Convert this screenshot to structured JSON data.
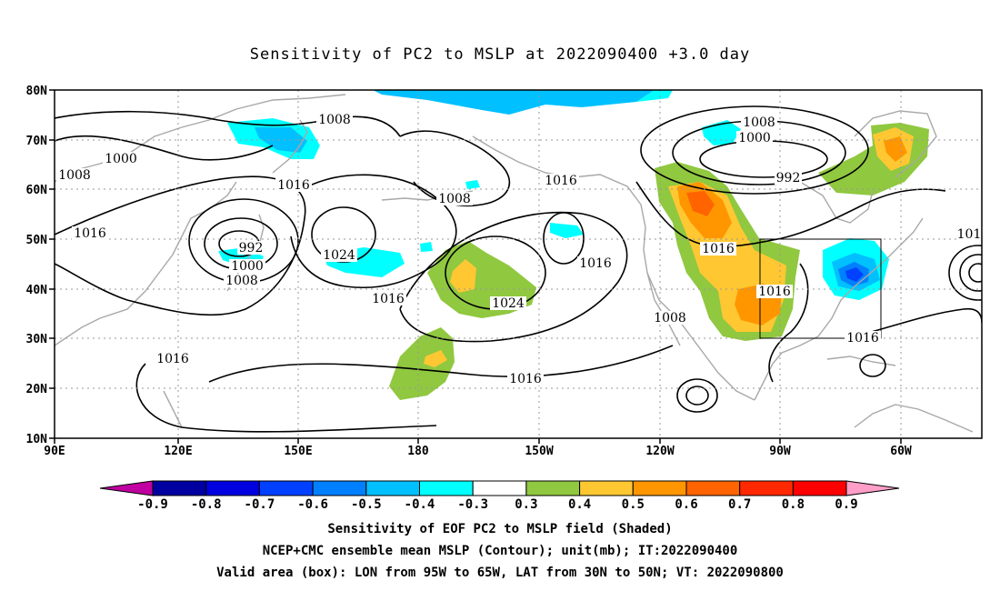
{
  "title": "Sensitivity of PC2 to MSLP at 2022090400 +3.0 day",
  "lat_labels": [
    "80N",
    "70N",
    "60N",
    "50N",
    "40N",
    "30N",
    "20N",
    "10N"
  ],
  "lon_labels": [
    "90E",
    "120E",
    "150E",
    "180",
    "150W",
    "120W",
    "90W",
    "60W"
  ],
  "contour_labels": [
    {
      "text": "1008"
    },
    {
      "text": "1000"
    },
    {
      "text": "1008"
    },
    {
      "text": "1016"
    },
    {
      "text": "992"
    },
    {
      "text": "1000"
    },
    {
      "text": "1008"
    },
    {
      "text": "1016"
    },
    {
      "text": "1016"
    },
    {
      "text": "1024"
    },
    {
      "text": "1008"
    },
    {
      "text": "1016"
    },
    {
      "text": "1024"
    },
    {
      "text": "1016"
    },
    {
      "text": "1016"
    },
    {
      "text": "1008"
    },
    {
      "text": "1000"
    },
    {
      "text": "992"
    },
    {
      "text": "1016"
    },
    {
      "text": "1016"
    },
    {
      "text": "1008"
    },
    {
      "text": "1016"
    },
    {
      "text": "1016"
    },
    {
      "text": "101"
    }
  ],
  "colorbar": {
    "colors": [
      "#c000a0",
      "#0000a0",
      "#0000e0",
      "#0040ff",
      "#0080ff",
      "#00c0ff",
      "#00ffff",
      "#ffffff",
      "#90c840",
      "#ffc832",
      "#ff9600",
      "#ff6400",
      "#ff2800",
      "#ff0000",
      "#ff9ec8"
    ],
    "labels": [
      "-0.9",
      "-0.8",
      "-0.7",
      "-0.6",
      "-0.5",
      "-0.4",
      "-0.3",
      "0.3",
      "0.4",
      "0.5",
      "0.6",
      "0.7",
      "0.8",
      "0.9"
    ]
  },
  "footer": {
    "line1": "Sensitivity of EOF PC2 to MSLP field (Shaded)",
    "line2": "NCEP+CMC ensemble mean MSLP (Contour); unit(mb); IT:2022090400",
    "line3": "Valid area (box): LON from 95W to 65W, LAT from 30N to 50N; VT: 2022090800"
  }
}
